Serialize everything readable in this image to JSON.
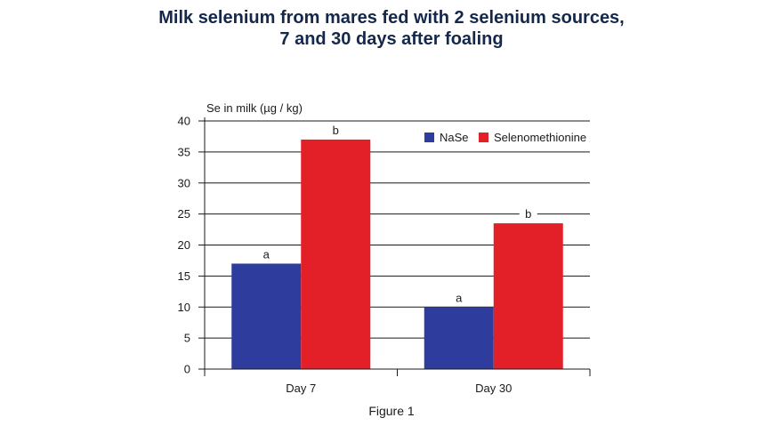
{
  "chart_data": {
    "type": "bar",
    "title_lines": [
      "Milk selenium from mares fed with 2 selenium sources,",
      "7 and 30 days after foaling"
    ],
    "ylabel": "Se in milk (µg / kg)",
    "xlabel": "",
    "ylim": [
      0,
      40
    ],
    "yticks": [
      0,
      5,
      10,
      15,
      20,
      25,
      30,
      35,
      40
    ],
    "grid": true,
    "legend_position": "top-right",
    "categories": [
      "Day 7",
      "Day 30"
    ],
    "series": [
      {
        "name": "NaSe",
        "color": "#2e3d9d",
        "values": [
          17,
          10
        ],
        "labels": [
          "a",
          "a"
        ]
      },
      {
        "name": "Selenomethionine",
        "color": "#e32028",
        "values": [
          37,
          23.5
        ],
        "labels": [
          "b",
          "b"
        ]
      }
    ]
  },
  "caption": "Figure 1"
}
